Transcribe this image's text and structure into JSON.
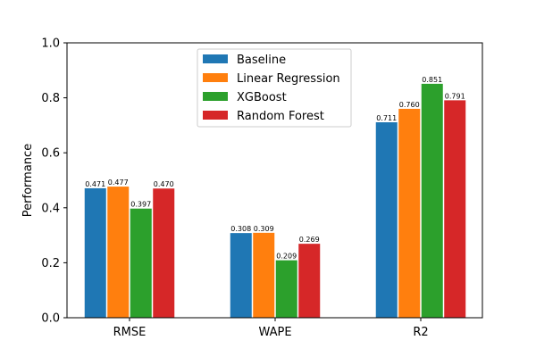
{
  "chart_data": {
    "type": "bar",
    "title": "",
    "xlabel": "",
    "ylabel": "Performance",
    "ylim": [
      0,
      1.0
    ],
    "yticks": [
      "0.0",
      "0.2",
      "0.4",
      "0.6",
      "0.8",
      "1.0"
    ],
    "categories": [
      "RMSE",
      "WAPE",
      "R2"
    ],
    "grid": false,
    "legend_position": "top-center",
    "series": [
      {
        "name": "Baseline",
        "color": "#1f77b4",
        "values": [
          0.471,
          0.308,
          0.711
        ],
        "labels": [
          "0.471",
          "0.308",
          "0.711"
        ]
      },
      {
        "name": "Linear Regression",
        "color": "#ff7f0e",
        "values": [
          0.477,
          0.309,
          0.76
        ],
        "labels": [
          "0.477",
          "0.309",
          "0.760"
        ]
      },
      {
        "name": "XGBoost",
        "color": "#2ca02c",
        "values": [
          0.397,
          0.209,
          0.851
        ],
        "labels": [
          "0.397",
          "0.209",
          "0.851"
        ]
      },
      {
        "name": "Random Forest",
        "color": "#d62728",
        "values": [
          0.47,
          0.269,
          0.791
        ],
        "labels": [
          "0.470",
          "0.269",
          "0.791"
        ]
      }
    ]
  }
}
